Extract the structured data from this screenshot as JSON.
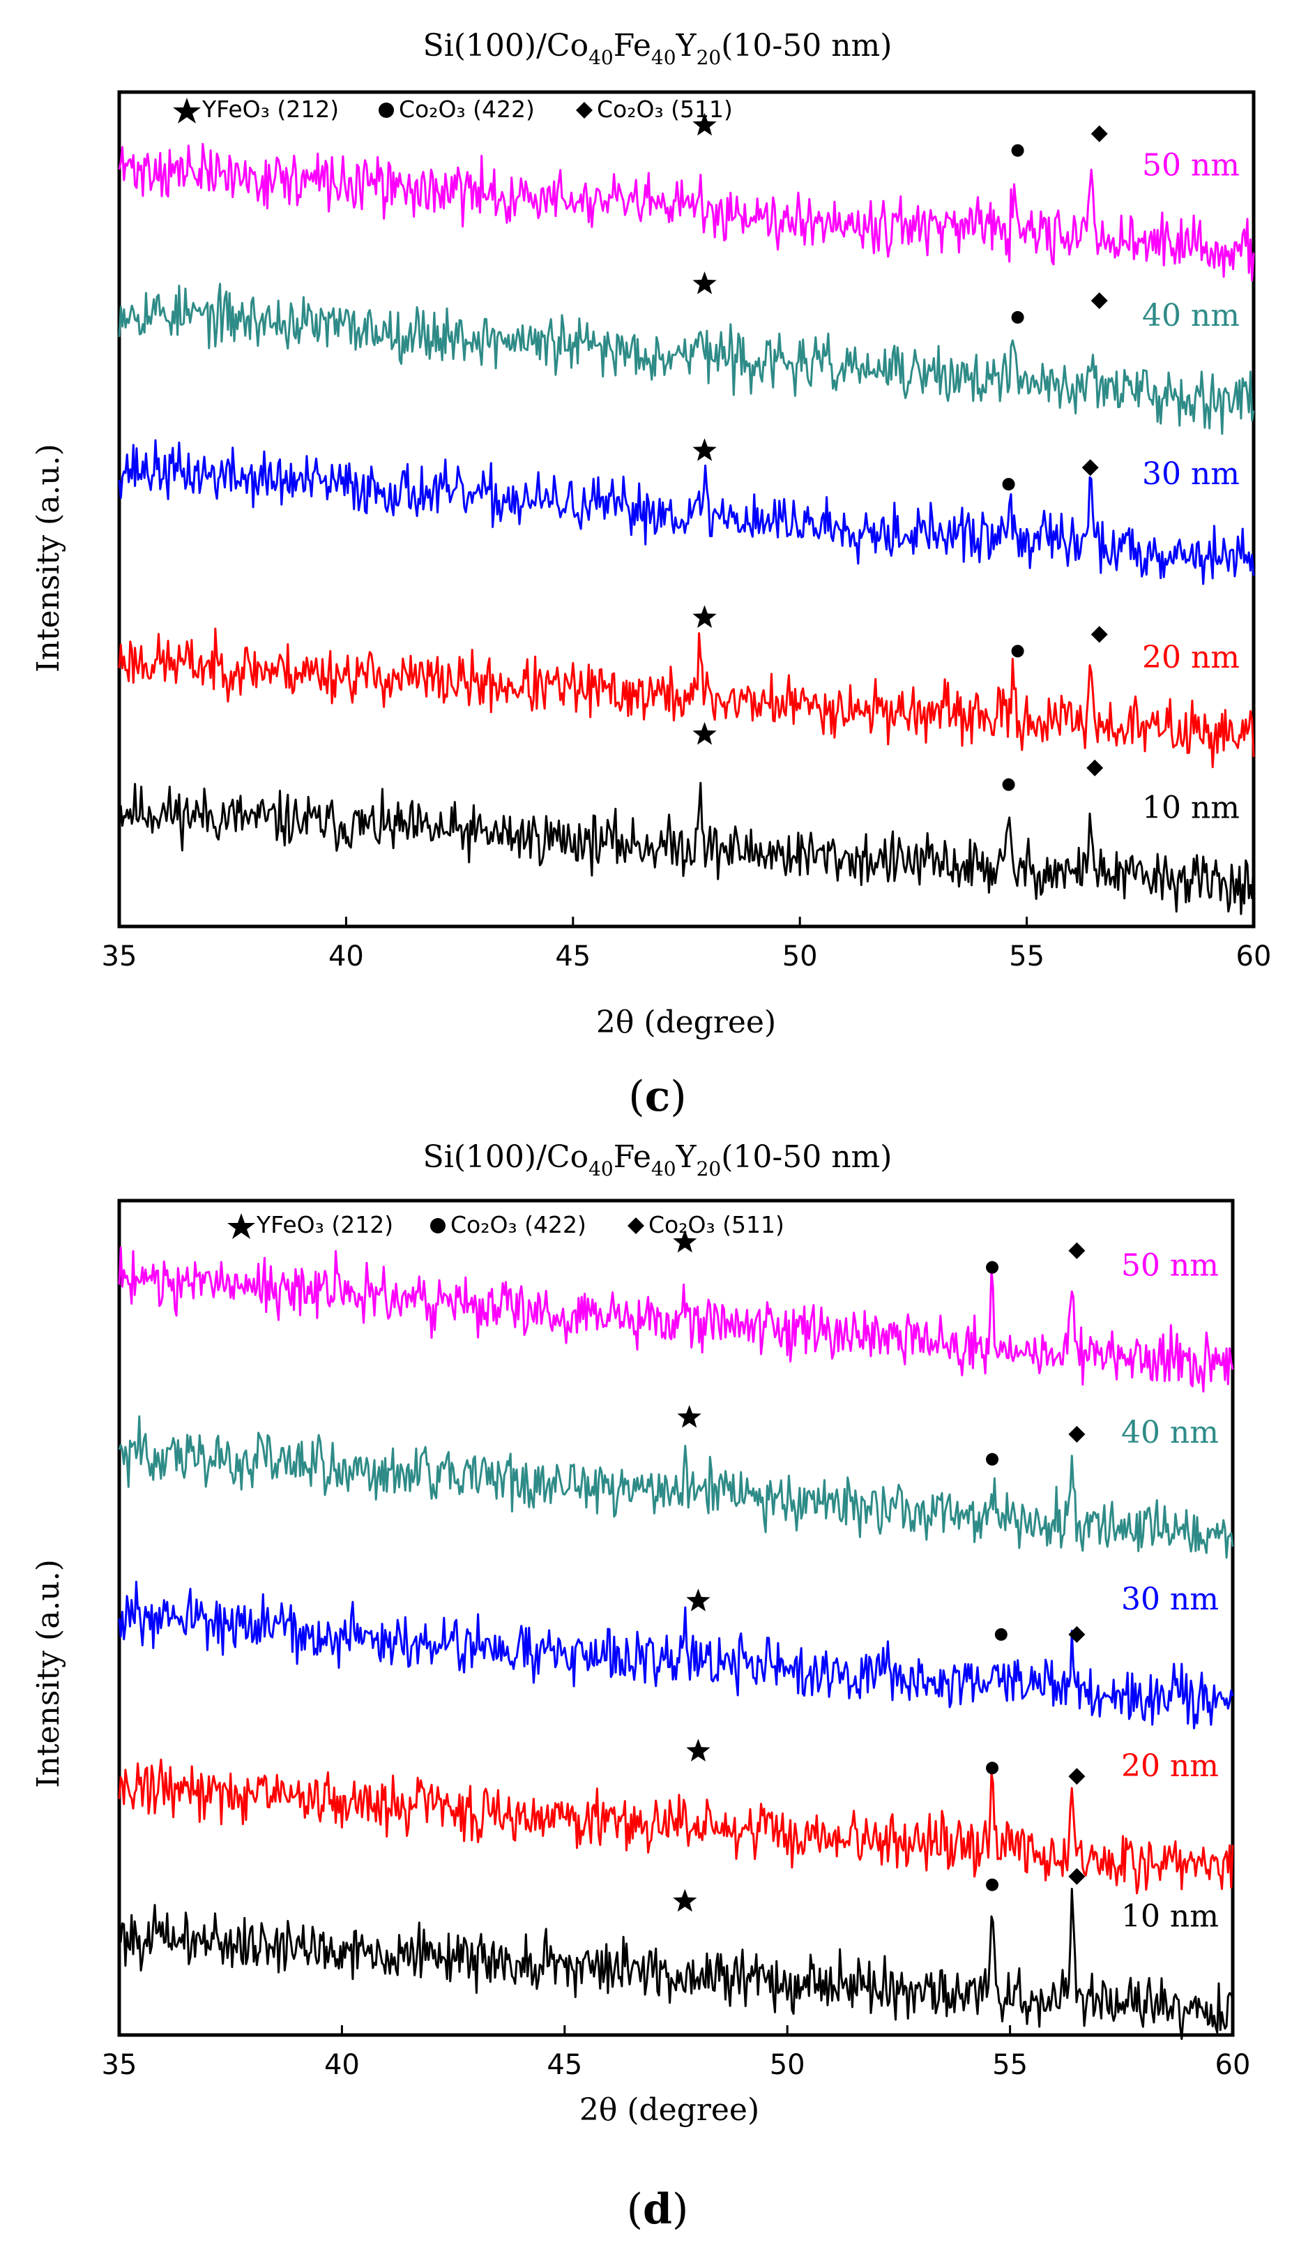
{
  "figure": {
    "panels": [
      {
        "label_open": "(",
        "label_letter": "c",
        "label_close": ")",
        "title": {
          "prefix": "Si(100)/Co",
          "sub1": "40",
          "mid1": "Fe",
          "sub2": "40",
          "mid2": "Y",
          "sub3": "20",
          "suffix": "(10-50 nm)"
        },
        "legend": [
          {
            "symbol": "star",
            "text": "YFeO₃ (212)"
          },
          {
            "symbol": "circle",
            "text": "Co₂O₃ (422)"
          },
          {
            "symbol": "diamond",
            "text": "Co₂O₃ (511)"
          }
        ]
      },
      {
        "label_open": "(",
        "label_letter": "d",
        "label_close": ")",
        "title": {
          "prefix": "Si(100)/Co",
          "sub1": "40",
          "mid1": "Fe",
          "sub2": "40",
          "mid2": "Y",
          "sub3": "20",
          "suffix": "(10-50 nm)"
        },
        "legend": [
          {
            "symbol": "star",
            "text": "YFeO₃ (212)"
          },
          {
            "symbol": "circle",
            "text": "Co₂O₃ (422)"
          },
          {
            "symbol": "diamond",
            "text": "Co₂O₃ (511)"
          }
        ]
      }
    ]
  },
  "chart_data": [
    {
      "type": "line",
      "title": "Si(100)/Co40Fe40Y20(10-50 nm)",
      "xlabel": "2θ (degree)",
      "ylabel": "Intensity (a.u.)",
      "xlim": [
        35,
        60
      ],
      "xticks": [
        35,
        40,
        45,
        50,
        55,
        60
      ],
      "ylim": [
        0,
        100
      ],
      "series": [
        {
          "name": "10 nm",
          "color": "#000000",
          "baseline": 6,
          "start": 14,
          "end": 5,
          "noise": 2.0,
          "seed": 11,
          "peaks": [
            {
              "x": 47.8,
              "h": 8
            },
            {
              "x": 54.6,
              "h": 5
            },
            {
              "x": 56.4,
              "h": 8
            }
          ],
          "markers": [
            {
              "symbol": "star",
              "x": 47.9,
              "y": 23
            },
            {
              "symbol": "circle",
              "x": 54.6,
              "y": 17
            },
            {
              "symbol": "diamond",
              "x": 56.5,
              "y": 19
            }
          ]
        },
        {
          "name": "20 nm",
          "color": "#ff0000",
          "baseline": 24,
          "start": 32,
          "end": 23,
          "noise": 2.0,
          "seed": 23,
          "peaks": [
            {
              "x": 47.8,
              "h": 6
            },
            {
              "x": 54.7,
              "h": 4
            },
            {
              "x": 56.4,
              "h": 8
            }
          ],
          "markers": [
            {
              "symbol": "star",
              "x": 47.9,
              "y": 37
            },
            {
              "symbol": "circle",
              "x": 54.8,
              "y": 33
            },
            {
              "symbol": "diamond",
              "x": 56.6,
              "y": 35
            }
          ]
        },
        {
          "name": "30 nm",
          "color": "#0000ff",
          "baseline": 46,
          "start": 55,
          "end": 44,
          "noise": 2.0,
          "seed": 37,
          "peaks": [
            {
              "x": 47.9,
              "h": 4
            },
            {
              "x": 54.6,
              "h": 5
            },
            {
              "x": 55.4,
              "h": 4
            },
            {
              "x": 56.4,
              "h": 9
            }
          ],
          "markers": [
            {
              "symbol": "star",
              "x": 47.9,
              "y": 57
            },
            {
              "symbol": "circle",
              "x": 54.6,
              "y": 53
            },
            {
              "symbol": "diamond",
              "x": 56.4,
              "y": 55
            }
          ]
        },
        {
          "name": "40 nm",
          "color": "#2e8b87",
          "baseline": 65,
          "start": 74,
          "end": 63,
          "noise": 2.0,
          "seed": 53,
          "peaks": [
            {
              "x": 47.8,
              "h": 5
            },
            {
              "x": 54.7,
              "h": 3
            },
            {
              "x": 56.4,
              "h": 5
            }
          ],
          "markers": [
            {
              "symbol": "star",
              "x": 47.9,
              "y": 77
            },
            {
              "symbol": "circle",
              "x": 54.8,
              "y": 73
            },
            {
              "symbol": "diamond",
              "x": 56.6,
              "y": 75
            }
          ]
        },
        {
          "name": "50 nm",
          "color": "#ff00ff",
          "baseline": 83,
          "start": 91,
          "end": 81,
          "noise": 2.0,
          "seed": 71,
          "peaks": [
            {
              "x": 47.8,
              "h": 3
            },
            {
              "x": 54.7,
              "h": 4
            },
            {
              "x": 56.4,
              "h": 8
            }
          ],
          "markers": [
            {
              "symbol": "star",
              "x": 47.9,
              "y": 96
            },
            {
              "symbol": "circle",
              "x": 54.8,
              "y": 93
            },
            {
              "symbol": "diamond",
              "x": 56.6,
              "y": 95
            }
          ]
        }
      ]
    },
    {
      "type": "line",
      "title": "Si(100)/Co40Fe40Y20(10-50 nm)",
      "xlabel": "2θ (degree)",
      "ylabel": "Intensity (a.u.)",
      "xlim": [
        35,
        60
      ],
      "xticks": [
        35,
        40,
        45,
        50,
        55,
        60
      ],
      "ylim": [
        0,
        100
      ],
      "series": [
        {
          "name": "10 nm",
          "color": "#000000",
          "baseline": 6,
          "start": 12,
          "end": 3,
          "noise": 2.0,
          "seed": 101,
          "peaks": [
            {
              "x": 54.6,
              "h": 10
            },
            {
              "x": 56.4,
              "h": 11
            }
          ],
          "markers": [
            {
              "symbol": "star",
              "x": 47.7,
              "y": 16
            },
            {
              "symbol": "circle",
              "x": 54.6,
              "y": 18
            },
            {
              "symbol": "diamond",
              "x": 56.5,
              "y": 19
            }
          ]
        },
        {
          "name": "20 nm",
          "color": "#ff0000",
          "baseline": 24,
          "start": 30,
          "end": 20,
          "noise": 2.0,
          "seed": 131,
          "peaks": [
            {
              "x": 41.8,
              "h": 4
            },
            {
              "x": 47.7,
              "h": 4
            },
            {
              "x": 54.6,
              "h": 9
            },
            {
              "x": 56.4,
              "h": 8
            }
          ],
          "markers": [
            {
              "symbol": "star",
              "x": 48.0,
              "y": 34
            },
            {
              "symbol": "circle",
              "x": 54.6,
              "y": 32
            },
            {
              "symbol": "diamond",
              "x": 56.5,
              "y": 31
            }
          ]
        },
        {
          "name": "30 nm",
          "color": "#0000ff",
          "baseline": 44,
          "start": 50,
          "end": 40,
          "noise": 2.0,
          "seed": 151,
          "peaks": [
            {
              "x": 47.7,
              "h": 4
            },
            {
              "x": 54.7,
              "h": 4
            },
            {
              "x": 56.4,
              "h": 5
            }
          ],
          "markers": [
            {
              "symbol": "star",
              "x": 48.0,
              "y": 52
            },
            {
              "symbol": "circle",
              "x": 54.8,
              "y": 48
            },
            {
              "symbol": "diamond",
              "x": 56.5,
              "y": 48
            }
          ]
        },
        {
          "name": "40 nm",
          "color": "#2e8b87",
          "baseline": 64,
          "start": 70,
          "end": 60,
          "noise": 2.0,
          "seed": 173,
          "peaks": [
            {
              "x": 47.7,
              "h": 4
            },
            {
              "x": 54.6,
              "h": 4
            },
            {
              "x": 56.4,
              "h": 7
            }
          ],
          "markers": [
            {
              "symbol": "star",
              "x": 47.8,
              "y": 74
            },
            {
              "symbol": "circle",
              "x": 54.6,
              "y": 69
            },
            {
              "symbol": "diamond",
              "x": 56.5,
              "y": 72
            }
          ]
        },
        {
          "name": "50 nm",
          "color": "#ff00ff",
          "baseline": 84,
          "start": 91,
          "end": 80,
          "noise": 2.0,
          "seed": 197,
          "peaks": [
            {
              "x": 39.9,
              "h": 4
            },
            {
              "x": 47.7,
              "h": 4
            },
            {
              "x": 54.6,
              "h": 7
            },
            {
              "x": 56.4,
              "h": 7
            }
          ],
          "markers": [
            {
              "symbol": "star",
              "x": 47.7,
              "y": 95
            },
            {
              "symbol": "circle",
              "x": 54.6,
              "y": 92
            },
            {
              "symbol": "diamond",
              "x": 56.5,
              "y": 94
            }
          ]
        }
      ]
    }
  ]
}
